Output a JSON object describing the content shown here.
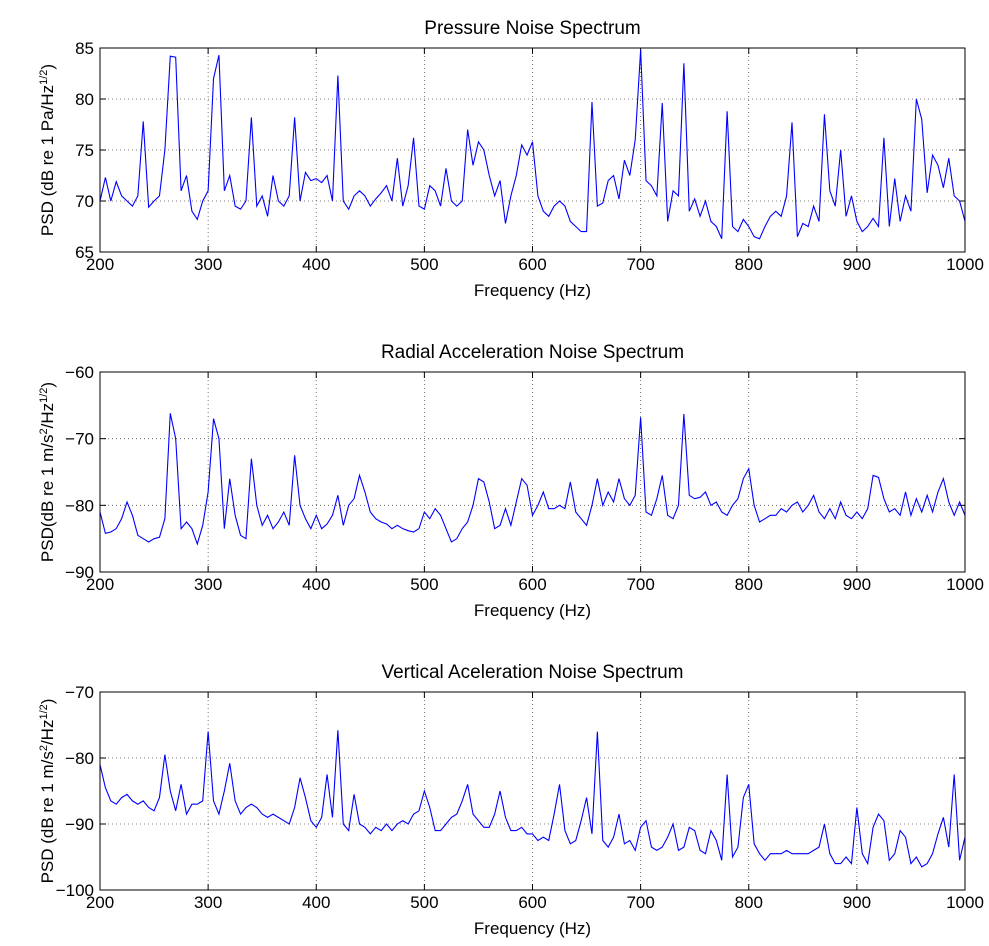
{
  "chart_data": [
    {
      "type": "line",
      "title": "Pressure Noise Spectrum",
      "xlabel": "Frequency (Hz)",
      "ylabel": [
        {
          "text": "PSD (dB re 1 Pa/Hz"
        },
        {
          "text": "1/2",
          "sup": true
        },
        {
          "text": ")"
        }
      ],
      "xlim": [
        200,
        1000
      ],
      "xticks": [
        200,
        300,
        400,
        500,
        600,
        700,
        800,
        900,
        1000
      ],
      "ylim": [
        65,
        85
      ],
      "yticks": [
        65,
        70,
        75,
        80,
        85
      ],
      "grid": true,
      "color": "#0000ff",
      "x": [
        200,
        205,
        210,
        215,
        220,
        225,
        230,
        235,
        240,
        245,
        250,
        255,
        260,
        265,
        270,
        275,
        280,
        285,
        290,
        295,
        300,
        305,
        310,
        315,
        320,
        325,
        330,
        335,
        340,
        345,
        350,
        355,
        360,
        365,
        370,
        375,
        380,
        385,
        390,
        395,
        400,
        405,
        410,
        415,
        420,
        425,
        430,
        435,
        440,
        445,
        450,
        455,
        460,
        465,
        470,
        475,
        480,
        485,
        490,
        495,
        500,
        505,
        510,
        515,
        520,
        525,
        530,
        535,
        540,
        545,
        550,
        555,
        560,
        565,
        570,
        575,
        580,
        585,
        590,
        595,
        600,
        605,
        610,
        615,
        620,
        625,
        630,
        635,
        640,
        645,
        650,
        655,
        660,
        665,
        670,
        675,
        680,
        685,
        690,
        695,
        700,
        705,
        710,
        715,
        720,
        725,
        730,
        735,
        740,
        745,
        750,
        755,
        760,
        765,
        770,
        775,
        780,
        785,
        790,
        795,
        800,
        805,
        810,
        815,
        820,
        825,
        830,
        835,
        840,
        845,
        850,
        855,
        860,
        865,
        870,
        875,
        880,
        885,
        890,
        895,
        900,
        905,
        910,
        915,
        920,
        925,
        930,
        935,
        940,
        945,
        950,
        955,
        960,
        965,
        970,
        975,
        980,
        985,
        990,
        995,
        1000
      ],
      "values": [
        70,
        72.3,
        70,
        71.9,
        70.5,
        70,
        69.5,
        70.5,
        77.8,
        69.4,
        70,
        70.5,
        75,
        84.2,
        84.1,
        71,
        72.5,
        69,
        68.2,
        70,
        71,
        82,
        84.3,
        71,
        72.5,
        69.5,
        69.2,
        70,
        78.2,
        69.5,
        70.5,
        68.5,
        72.5,
        70,
        69.5,
        70.5,
        78.2,
        70,
        72.8,
        72,
        72.2,
        71.8,
        72.5,
        70,
        82.3,
        70,
        69.2,
        70.5,
        71,
        70.5,
        69.5,
        70.2,
        70.8,
        71.5,
        70,
        74.2,
        69.5,
        71.5,
        76.2,
        69.5,
        69.2,
        71.5,
        71,
        69.5,
        73.2,
        70,
        69.5,
        70,
        77,
        73.5,
        75.8,
        75,
        72.5,
        70.5,
        72,
        67.8,
        70.5,
        72.5,
        75.5,
        74.5,
        75.8,
        70.5,
        69,
        68.5,
        69.5,
        70,
        69.5,
        68,
        67.5,
        67,
        67,
        79.7,
        69.5,
        69.8,
        72,
        72.5,
        70.2,
        74,
        72.5,
        76,
        84.8,
        72,
        71.5,
        70.5,
        79.6,
        68,
        71,
        70.5,
        83.5,
        69,
        70.2,
        68.5,
        70,
        68,
        67.5,
        66.3,
        78.8,
        67.5,
        67,
        68.2,
        67.5,
        66.5,
        66.3,
        67.5,
        68.5,
        69,
        68.5,
        70.5,
        77.7,
        66.5,
        67.8,
        67.5,
        69.5,
        68,
        78.5,
        71,
        69.5,
        75,
        68.5,
        70.5,
        68,
        67,
        67.5,
        68.3,
        67.5,
        76.2,
        67.5,
        72.2,
        68,
        70.5,
        69,
        80,
        78,
        70.8,
        74.5,
        73.5,
        71.3,
        74.2,
        70.5,
        70,
        68
      ]
    },
    {
      "type": "line",
      "title": "Radial Acceleration Noise Spectrum",
      "xlabel": "Frequency (Hz)",
      "ylabel": [
        {
          "text": "PSD(dB re 1 m/s"
        },
        {
          "text": "2",
          "sup": true
        },
        {
          "text": "/Hz"
        },
        {
          "text": "1/2",
          "sup": true
        },
        {
          "text": ")"
        }
      ],
      "xlim": [
        200,
        1000
      ],
      "xticks": [
        200,
        300,
        400,
        500,
        600,
        700,
        800,
        900,
        1000
      ],
      "ylim": [
        -90,
        -60
      ],
      "yticks": [
        {
          "value": -90,
          "label": "−90"
        },
        {
          "value": -80,
          "label": "−80"
        },
        {
          "value": -70,
          "label": "−70"
        },
        {
          "value": -60,
          "label": "−60"
        }
      ],
      "grid": true,
      "color": "#0000ff",
      "x": [
        200,
        205,
        210,
        215,
        220,
        225,
        230,
        235,
        240,
        245,
        250,
        255,
        260,
        265,
        270,
        275,
        280,
        285,
        290,
        295,
        300,
        305,
        310,
        315,
        320,
        325,
        330,
        335,
        340,
        345,
        350,
        355,
        360,
        365,
        370,
        375,
        380,
        385,
        390,
        395,
        400,
        405,
        410,
        415,
        420,
        425,
        430,
        435,
        440,
        445,
        450,
        455,
        460,
        465,
        470,
        475,
        480,
        485,
        490,
        495,
        500,
        505,
        510,
        515,
        520,
        525,
        530,
        535,
        540,
        545,
        550,
        555,
        560,
        565,
        570,
        575,
        580,
        585,
        590,
        595,
        600,
        605,
        610,
        615,
        620,
        625,
        630,
        635,
        640,
        645,
        650,
        655,
        660,
        665,
        670,
        675,
        680,
        685,
        690,
        695,
        700,
        705,
        710,
        715,
        720,
        725,
        730,
        735,
        740,
        745,
        750,
        755,
        760,
        765,
        770,
        775,
        780,
        785,
        790,
        795,
        800,
        805,
        810,
        815,
        820,
        825,
        830,
        835,
        840,
        845,
        850,
        855,
        860,
        865,
        870,
        875,
        880,
        885,
        890,
        895,
        900,
        905,
        910,
        915,
        920,
        925,
        930,
        935,
        940,
        945,
        950,
        955,
        960,
        965,
        970,
        975,
        980,
        985,
        990,
        995,
        1000
      ],
      "values": [
        -81,
        -84.2,
        -84,
        -83.5,
        -82,
        -79.5,
        -81.5,
        -84.5,
        -85,
        -85.5,
        -85,
        -84.8,
        -82,
        -66.2,
        -70,
        -83.5,
        -82.5,
        -83.5,
        -85.8,
        -83,
        -78,
        -67,
        -70,
        -83.5,
        -76,
        -81.5,
        -84.5,
        -85,
        -73,
        -80,
        -83,
        -81.5,
        -83.5,
        -82.5,
        -81,
        -83,
        -72.5,
        -80,
        -82,
        -83.5,
        -81.5,
        -83.5,
        -82.8,
        -81.5,
        -78.5,
        -83,
        -80,
        -79,
        -75.5,
        -78,
        -81,
        -82,
        -82.5,
        -82.8,
        -83.5,
        -83,
        -83.5,
        -83.8,
        -84,
        -83.5,
        -81,
        -82,
        -80.5,
        -81.5,
        -83.5,
        -85.5,
        -85,
        -83.5,
        -82.5,
        -80,
        -76,
        -76.5,
        -79.5,
        -83.5,
        -83,
        -80.5,
        -83,
        -79.5,
        -76,
        -77,
        -81.5,
        -80,
        -78,
        -80.5,
        -80.5,
        -80,
        -80.5,
        -76.5,
        -81,
        -82,
        -83,
        -80,
        -76,
        -80,
        -78,
        -79.5,
        -76,
        -79,
        -80,
        -78.5,
        -66.8,
        -81,
        -81.5,
        -79,
        -75.5,
        -81.5,
        -82,
        -80,
        -66.3,
        -78.5,
        -79,
        -78.8,
        -78,
        -80,
        -79.5,
        -81,
        -81.5,
        -80,
        -79,
        -76,
        -74.5,
        -80,
        -82.5,
        -82,
        -81.5,
        -81.5,
        -80.5,
        -81,
        -80,
        -79.5,
        -81,
        -80,
        -78.5,
        -81,
        -82,
        -80.5,
        -82,
        -79.5,
        -81.5,
        -82,
        -81,
        -82,
        -80.5,
        -75.5,
        -75.8,
        -79,
        -81,
        -80.5,
        -81.5,
        -78,
        -81.5,
        -79,
        -81,
        -78.5,
        -81,
        -78,
        -76,
        -79.5,
        -81.5,
        -79.5,
        -81.5
      ]
    },
    {
      "type": "line",
      "title": "Vertical Aceleration Noise Spectrum",
      "xlabel": "Frequency (Hz)",
      "ylabel": [
        {
          "text": "PSD (dB re 1 m/s"
        },
        {
          "text": "2",
          "sup": true
        },
        {
          "text": "/Hz"
        },
        {
          "text": "1/2",
          "sup": true
        },
        {
          "text": ")"
        }
      ],
      "xlim": [
        200,
        1000
      ],
      "xticks": [
        200,
        300,
        400,
        500,
        600,
        700,
        800,
        900,
        1000
      ],
      "ylim": [
        -100,
        -70
      ],
      "yticks": [
        {
          "value": -100,
          "label": "−100"
        },
        {
          "value": -90,
          "label": "−90"
        },
        {
          "value": -80,
          "label": "−80"
        },
        {
          "value": -70,
          "label": "−70"
        }
      ],
      "grid": true,
      "color": "#0000ff",
      "x": [
        200,
        205,
        210,
        215,
        220,
        225,
        230,
        235,
        240,
        245,
        250,
        255,
        260,
        265,
        270,
        275,
        280,
        285,
        290,
        295,
        300,
        305,
        310,
        315,
        320,
        325,
        330,
        335,
        340,
        345,
        350,
        355,
        360,
        365,
        370,
        375,
        380,
        385,
        390,
        395,
        400,
        405,
        410,
        415,
        420,
        425,
        430,
        435,
        440,
        445,
        450,
        455,
        460,
        465,
        470,
        475,
        480,
        485,
        490,
        495,
        500,
        505,
        510,
        515,
        520,
        525,
        530,
        535,
        540,
        545,
        550,
        555,
        560,
        565,
        570,
        575,
        580,
        585,
        590,
        595,
        600,
        605,
        610,
        615,
        620,
        625,
        630,
        635,
        640,
        645,
        650,
        655,
        660,
        665,
        670,
        675,
        680,
        685,
        690,
        695,
        700,
        705,
        710,
        715,
        720,
        725,
        730,
        735,
        740,
        745,
        750,
        755,
        760,
        765,
        770,
        775,
        780,
        785,
        790,
        795,
        800,
        805,
        810,
        815,
        820,
        825,
        830,
        835,
        840,
        845,
        850,
        855,
        860,
        865,
        870,
        875,
        880,
        885,
        890,
        895,
        900,
        905,
        910,
        915,
        920,
        925,
        930,
        935,
        940,
        945,
        950,
        955,
        960,
        965,
        970,
        975,
        980,
        985,
        990,
        995,
        1000
      ],
      "values": [
        -81,
        -84.5,
        -86.5,
        -87,
        -86,
        -85.5,
        -86.5,
        -87,
        -86.5,
        -87.5,
        -88,
        -86,
        -79.5,
        -85,
        -88,
        -84,
        -88.5,
        -87,
        -87,
        -86.5,
        -76,
        -86.5,
        -88.5,
        -85,
        -80.8,
        -86.5,
        -88.5,
        -87.5,
        -87,
        -87.5,
        -88.5,
        -89,
        -88.5,
        -89,
        -89.5,
        -90,
        -87.5,
        -83,
        -86,
        -89.5,
        -90.5,
        -89,
        -82.5,
        -89,
        -75.8,
        -90,
        -91,
        -85.5,
        -90,
        -90.5,
        -91.5,
        -90.5,
        -91,
        -90,
        -91,
        -90,
        -89.5,
        -90,
        -88.5,
        -88,
        -85,
        -87.5,
        -91,
        -91,
        -90,
        -89,
        -88.5,
        -86.5,
        -84,
        -88.5,
        -89.5,
        -90.5,
        -90.5,
        -88.5,
        -85,
        -89,
        -91,
        -91,
        -90.5,
        -91.5,
        -91.5,
        -92.5,
        -92,
        -92.5,
        -88.5,
        -84,
        -91,
        -93,
        -92.5,
        -89.5,
        -86,
        -91.5,
        -76,
        -92.5,
        -93.5,
        -92,
        -88.5,
        -93,
        -92.5,
        -94,
        -90.5,
        -89.5,
        -93.5,
        -94,
        -93.5,
        -92,
        -90,
        -94,
        -93.5,
        -90.5,
        -91,
        -94,
        -94.5,
        -91,
        -92.5,
        -95.5,
        -82.5,
        -95,
        -93.5,
        -86,
        -84,
        -93,
        -94.5,
        -95.5,
        -94.5,
        -94.5,
        -94.5,
        -94,
        -94.5,
        -94.5,
        -94.5,
        -94.5,
        -94,
        -93.5,
        -90,
        -94.5,
        -96,
        -96,
        -95,
        -96,
        -87.5,
        -94.5,
        -96,
        -90.5,
        -88.5,
        -89.5,
        -95.5,
        -94.5,
        -91,
        -92,
        -96,
        -95,
        -96.5,
        -96,
        -94.5,
        -91.5,
        -89,
        -93.5,
        -82.5,
        -95.5,
        -92
      ]
    }
  ]
}
